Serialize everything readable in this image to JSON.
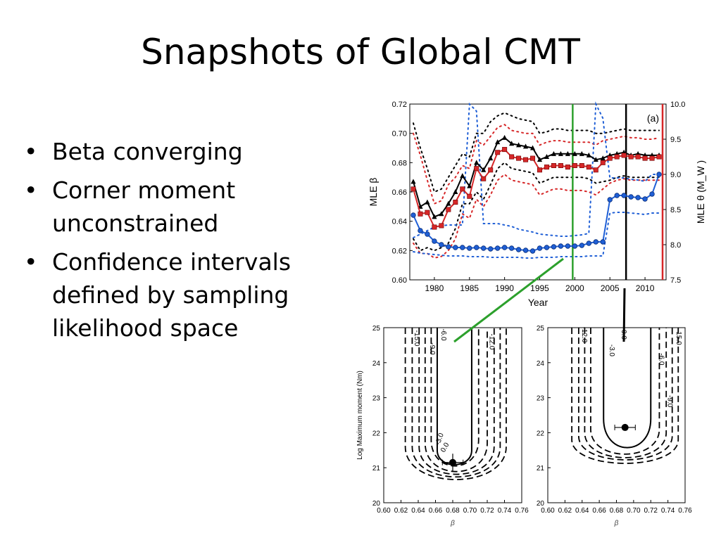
{
  "slide": {
    "title": "Snapshots of Global CMT",
    "bullets": [
      "Beta converging",
      "Corner moment unconstrained",
      "Confidence intervals defined by sampling likelihood space"
    ]
  },
  "chart_data": [
    {
      "type": "line",
      "panel_label": "(a)",
      "xlabel": "Year",
      "ylabel": "MLE β",
      "ylabel_right": "MLE θ (M_W )",
      "xlim": [
        1976.5,
        2013
      ],
      "ylim": [
        0.6,
        0.72
      ],
      "ylim_right": [
        7.5,
        10.0
      ],
      "x_ticks": [
        "1980",
        "1985",
        "1990",
        "1995",
        "2000",
        "2005",
        "2010"
      ],
      "y_ticks": [
        "0.60",
        "0.62",
        "0.64",
        "0.66",
        "0.68",
        "0.70",
        "0.72"
      ],
      "y_ticks_right": [
        "7.5",
        "8.0",
        "8.5",
        "9.0",
        "9.5",
        "10.0"
      ],
      "x": [
        1977,
        1978,
        1979,
        1980,
        1981,
        1982,
        1983,
        1984,
        1985,
        1986,
        1987,
        1988,
        1989,
        1990,
        1991,
        1992,
        1993,
        1994,
        1995,
        1996,
        1997,
        1998,
        1999,
        2000,
        2001,
        2002,
        2003,
        2004,
        2005,
        2006,
        2007,
        2008,
        2009,
        2010,
        2011,
        2012
      ],
      "series": [
        {
          "color": "#000000",
          "marker": "triangle",
          "values": [
            0.667,
            0.65,
            0.653,
            0.643,
            0.645,
            0.652,
            0.66,
            0.671,
            0.664,
            0.68,
            0.675,
            0.683,
            0.694,
            0.697,
            0.693,
            0.692,
            0.691,
            0.69,
            0.682,
            0.684,
            0.686,
            0.686,
            0.686,
            0.686,
            0.686,
            0.685,
            0.682,
            0.683,
            0.685,
            0.686,
            0.687,
            0.685,
            0.686,
            0.685,
            0.685,
            0.685
          ],
          "upper": [
            0.707,
            0.69,
            0.676,
            0.66,
            0.662,
            0.67,
            0.678,
            0.686,
            0.684,
            0.7,
            0.7,
            0.708,
            0.712,
            0.714,
            0.712,
            0.71,
            0.709,
            0.708,
            0.7,
            0.701,
            0.703,
            0.703,
            0.702,
            0.702,
            0.702,
            0.702,
            0.7,
            0.7,
            0.701,
            0.702,
            0.703,
            0.702,
            0.702,
            0.702,
            0.702,
            0.702
          ],
          "lower": [
            0.628,
            0.62,
            0.622,
            0.62,
            0.622,
            0.625,
            0.635,
            0.652,
            0.652,
            0.66,
            0.655,
            0.665,
            0.676,
            0.68,
            0.676,
            0.675,
            0.674,
            0.673,
            0.666,
            0.668,
            0.67,
            0.67,
            0.67,
            0.67,
            0.67,
            0.669,
            0.666,
            0.667,
            0.668,
            0.67,
            0.671,
            0.67,
            0.67,
            0.67,
            0.67,
            0.67
          ]
        },
        {
          "color": "#d62728",
          "marker": "square",
          "values": [
            0.662,
            0.645,
            0.646,
            0.636,
            0.637,
            0.648,
            0.653,
            0.662,
            0.657,
            0.676,
            0.669,
            0.675,
            0.687,
            0.689,
            0.684,
            0.683,
            0.682,
            0.683,
            0.675,
            0.677,
            0.678,
            0.678,
            0.677,
            0.678,
            0.678,
            0.677,
            0.675,
            0.68,
            0.683,
            0.684,
            0.685,
            0.684,
            0.684,
            0.683,
            0.683,
            0.684
          ],
          "upper": [
            0.7,
            0.685,
            0.668,
            0.652,
            0.654,
            0.665,
            0.67,
            0.678,
            0.676,
            0.695,
            0.692,
            0.698,
            0.704,
            0.706,
            0.702,
            0.701,
            0.7,
            0.7,
            0.692,
            0.694,
            0.695,
            0.695,
            0.694,
            0.694,
            0.694,
            0.694,
            0.692,
            0.695,
            0.696,
            0.697,
            0.698,
            0.697,
            0.697,
            0.696,
            0.696,
            0.697
          ],
          "lower": [
            0.625,
            0.618,
            0.618,
            0.615,
            0.616,
            0.62,
            0.628,
            0.645,
            0.642,
            0.655,
            0.65,
            0.658,
            0.668,
            0.672,
            0.668,
            0.667,
            0.666,
            0.665,
            0.658,
            0.66,
            0.662,
            0.662,
            0.661,
            0.661,
            0.661,
            0.66,
            0.658,
            0.662,
            0.666,
            0.668,
            0.669,
            0.668,
            0.668,
            0.668,
            0.668,
            0.668
          ]
        },
        {
          "color": "#1f5fd6",
          "marker": "circle",
          "axis": "right",
          "values": [
            8.42,
            8.2,
            8.15,
            8.05,
            8.0,
            7.97,
            7.96,
            7.96,
            7.95,
            7.96,
            7.95,
            7.94,
            7.95,
            7.96,
            7.95,
            7.93,
            7.92,
            7.91,
            7.95,
            7.96,
            7.97,
            7.98,
            7.98,
            7.98,
            7.99,
            8.02,
            8.04,
            8.04,
            8.64,
            8.7,
            8.7,
            8.68,
            8.67,
            8.65,
            8.72,
            9.0
          ],
          "upper": [
            8.1,
            8.15,
            8.2,
            8.25,
            8.27,
            8.28,
            8.28,
            8.28,
            10.0,
            9.9,
            8.3,
            8.3,
            8.3,
            8.28,
            8.26,
            8.22,
            8.2,
            8.18,
            8.15,
            8.14,
            8.13,
            8.12,
            8.12,
            8.13,
            8.14,
            8.16,
            10.0,
            9.8,
            8.95,
            8.95,
            8.95,
            8.93,
            8.92,
            8.9,
            9.0,
            9.0
          ],
          "lower": [
            7.9,
            7.88,
            7.87,
            7.86,
            7.85,
            7.84,
            7.84,
            7.84,
            7.83,
            7.83,
            7.83,
            7.82,
            7.82,
            7.82,
            7.82,
            7.82,
            7.81,
            7.81,
            7.82,
            7.82,
            7.82,
            7.83,
            7.83,
            7.83,
            7.83,
            7.84,
            7.84,
            7.84,
            8.45,
            8.46,
            8.46,
            8.45,
            8.44,
            8.43,
            8.45,
            8.45
          ]
        }
      ],
      "vertical_markers": [
        {
          "x": 1999.7,
          "color": "#2ca02c"
        },
        {
          "x": 2007.3,
          "color": "#000000"
        },
        {
          "x": 2012.5,
          "color": "#d62728"
        }
      ]
    },
    {
      "type": "contour",
      "xlabel": "β",
      "ylabel": "Log Maximum moment (Nm)",
      "xlim": [
        0.6,
        0.76
      ],
      "ylim": [
        20,
        25
      ],
      "x_ticks": [
        "0.60",
        "0.62",
        "0.64",
        "0.66",
        "0.68",
        "0.70",
        "0.72",
        "0.74",
        "0.76"
      ],
      "y_ticks": [
        "20",
        "21",
        "22",
        "23",
        "24",
        "25"
      ],
      "contour_labels": [
        "-15.0",
        "-6.0",
        "-9.0",
        "-12.0",
        "-3.0",
        "0.0"
      ],
      "best_fit": {
        "x": 0.68,
        "y": 21.15,
        "x_err": 0.012,
        "y_err": 0.25
      }
    },
    {
      "type": "contour",
      "xlabel": "β",
      "ylabel": "",
      "xlim": [
        0.6,
        0.76
      ],
      "ylim": [
        20,
        25
      ],
      "x_ticks": [
        "0.60",
        "0.62",
        "0.64",
        "0.66",
        "0.68",
        "0.70",
        "0.72",
        "0.74",
        "0.76"
      ],
      "y_ticks": [
        "20",
        "21",
        "22",
        "23",
        "24",
        "25"
      ],
      "contour_labels": [
        "-12.0",
        "0.0",
        "-3.0",
        "15.0",
        "-6.0",
        "-9.0"
      ],
      "best_fit": {
        "x": 0.69,
        "y": 22.15,
        "x_err": 0.012,
        "y_err": 0.0
      }
    }
  ]
}
